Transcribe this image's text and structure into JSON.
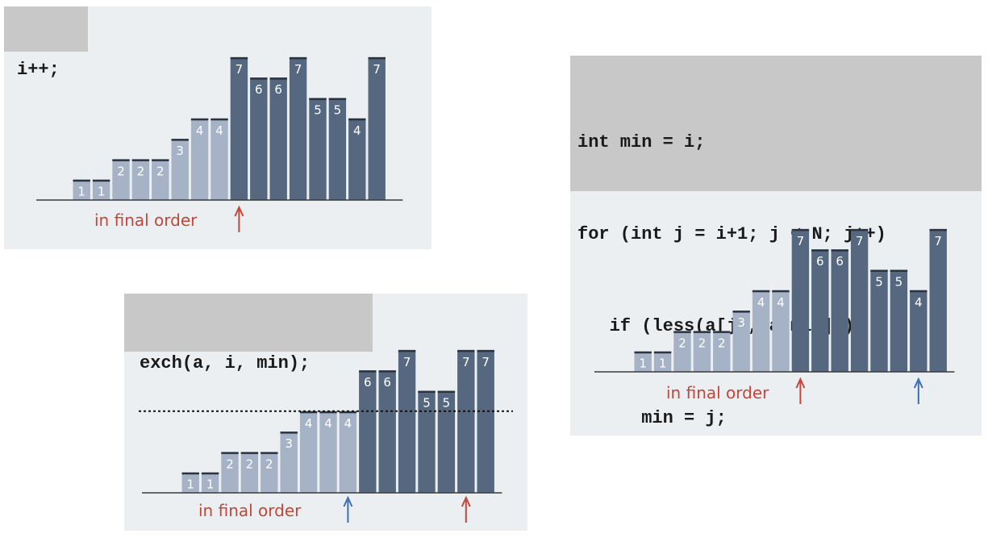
{
  "colors": {
    "light_bar": "#a6b3c6",
    "dark_bar": "#56687f",
    "cap": "#2c3340",
    "red_arrow": "#c0473a",
    "blue_arrow": "#3b6fb0",
    "panel_bg": "#eceff2",
    "code_bg": "#c8c8c8"
  },
  "panels": [
    {
      "id": "increment",
      "code_lines": [
        "i++;"
      ],
      "caption": "in final order",
      "bars": [
        {
          "value": 1,
          "label": "1",
          "sorted": true
        },
        {
          "value": 1,
          "label": "1",
          "sorted": true
        },
        {
          "value": 2,
          "label": "2",
          "sorted": true
        },
        {
          "value": 2,
          "label": "2",
          "sorted": true
        },
        {
          "value": 2,
          "label": "2",
          "sorted": true
        },
        {
          "value": 3,
          "label": "3",
          "sorted": true
        },
        {
          "value": 4,
          "label": "4",
          "sorted": true
        },
        {
          "value": 4,
          "label": "4",
          "sorted": true
        },
        {
          "value": 7,
          "label": "7",
          "sorted": false
        },
        {
          "value": 6,
          "label": "6",
          "sorted": false
        },
        {
          "value": 6,
          "label": "6",
          "sorted": false
        },
        {
          "value": 7,
          "label": "7",
          "sorted": false
        },
        {
          "value": 5,
          "label": "5",
          "sorted": false
        },
        {
          "value": 5,
          "label": "5",
          "sorted": false
        },
        {
          "value": 4,
          "label": "4",
          "sorted": false
        },
        {
          "value": 7,
          "label": "7",
          "sorted": false
        }
      ],
      "arrows": [
        {
          "index": 8,
          "color": "red"
        }
      ],
      "dotted_value": null
    },
    {
      "id": "find-min",
      "code_lines": [
        "int min = i;",
        "for (int j = i+1; j < N; j++)",
        "   if (less(a[j], a[min]))",
        "      min = j;"
      ],
      "caption": "in final order",
      "bars": [
        {
          "value": 1,
          "label": "1",
          "sorted": true
        },
        {
          "value": 1,
          "label": "1",
          "sorted": true
        },
        {
          "value": 2,
          "label": "2",
          "sorted": true
        },
        {
          "value": 2,
          "label": "2",
          "sorted": true
        },
        {
          "value": 2,
          "label": "2",
          "sorted": true
        },
        {
          "value": 3,
          "label": "3",
          "sorted": true
        },
        {
          "value": 4,
          "label": "4",
          "sorted": true
        },
        {
          "value": 4,
          "label": "4",
          "sorted": true
        },
        {
          "value": 7,
          "label": "7",
          "sorted": false
        },
        {
          "value": 6,
          "label": "6",
          "sorted": false
        },
        {
          "value": 6,
          "label": "6",
          "sorted": false
        },
        {
          "value": 7,
          "label": "7",
          "sorted": false
        },
        {
          "value": 5,
          "label": "5",
          "sorted": false
        },
        {
          "value": 5,
          "label": "5",
          "sorted": false
        },
        {
          "value": 4,
          "label": "4",
          "sorted": false
        },
        {
          "value": 7,
          "label": "7",
          "sorted": false
        }
      ],
      "arrows": [
        {
          "index": 8,
          "color": "red"
        },
        {
          "index": 14,
          "color": "blue"
        }
      ],
      "dotted_value": null
    },
    {
      "id": "exchange",
      "code_lines": [
        "exch(a, i, min);"
      ],
      "caption": "in final order",
      "bars": [
        {
          "value": 1,
          "label": "1",
          "sorted": true
        },
        {
          "value": 1,
          "label": "1",
          "sorted": true
        },
        {
          "value": 2,
          "label": "2",
          "sorted": true
        },
        {
          "value": 2,
          "label": "2",
          "sorted": true
        },
        {
          "value": 2,
          "label": "2",
          "sorted": true
        },
        {
          "value": 3,
          "label": "3",
          "sorted": true
        },
        {
          "value": 4,
          "label": "4",
          "sorted": true
        },
        {
          "value": 4,
          "label": "4",
          "sorted": true
        },
        {
          "value": 4,
          "label": "4",
          "sorted": true
        },
        {
          "value": 6,
          "label": "6",
          "sorted": false
        },
        {
          "value": 6,
          "label": "6",
          "sorted": false
        },
        {
          "value": 7,
          "label": "7",
          "sorted": false
        },
        {
          "value": 5,
          "label": "5",
          "sorted": false
        },
        {
          "value": 5,
          "label": "5",
          "sorted": false
        },
        {
          "value": 7,
          "label": "7",
          "sorted": false
        },
        {
          "value": 7,
          "label": "7",
          "sorted": false
        }
      ],
      "arrows": [
        {
          "index": 8,
          "color": "blue"
        },
        {
          "index": 14,
          "color": "red"
        }
      ],
      "dotted_value": 4
    }
  ]
}
